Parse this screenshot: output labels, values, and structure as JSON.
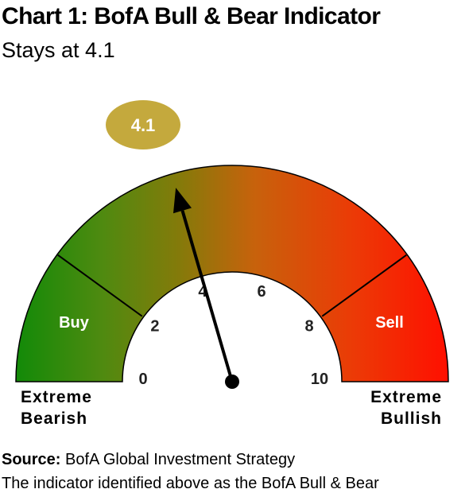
{
  "title": "Chart 1: BofA Bull & Bear Indicator",
  "subtitle": "Stays at 4.1",
  "chart_data": {
    "type": "gauge",
    "value": 4.1,
    "value_label": "4.1",
    "range": [
      0,
      10
    ],
    "tick_values": [
      0,
      2,
      4,
      6,
      8,
      10
    ],
    "tick_labels": [
      "0",
      "2",
      "4",
      "6",
      "8",
      "10"
    ],
    "zones": [
      {
        "label": "Buy",
        "from": 0,
        "to": 2,
        "color": "#1a8a0e"
      },
      {
        "label": "Sell",
        "from": 8,
        "to": 10,
        "color": "#ff1a00"
      }
    ],
    "left_label": [
      "Extreme",
      "Bearish"
    ],
    "right_label": [
      "Extreme",
      "Bullish"
    ],
    "colors": {
      "green": "#148c0a",
      "olive": "#8a7d0b",
      "orange": "#d9560c",
      "red": "#ff1200",
      "badge": "#c4a93d"
    }
  },
  "source": {
    "label": "Source:",
    "text": "BofA Global Investment Strategy"
  },
  "note": "The indicator identified above as the BofA Bull & Bear"
}
